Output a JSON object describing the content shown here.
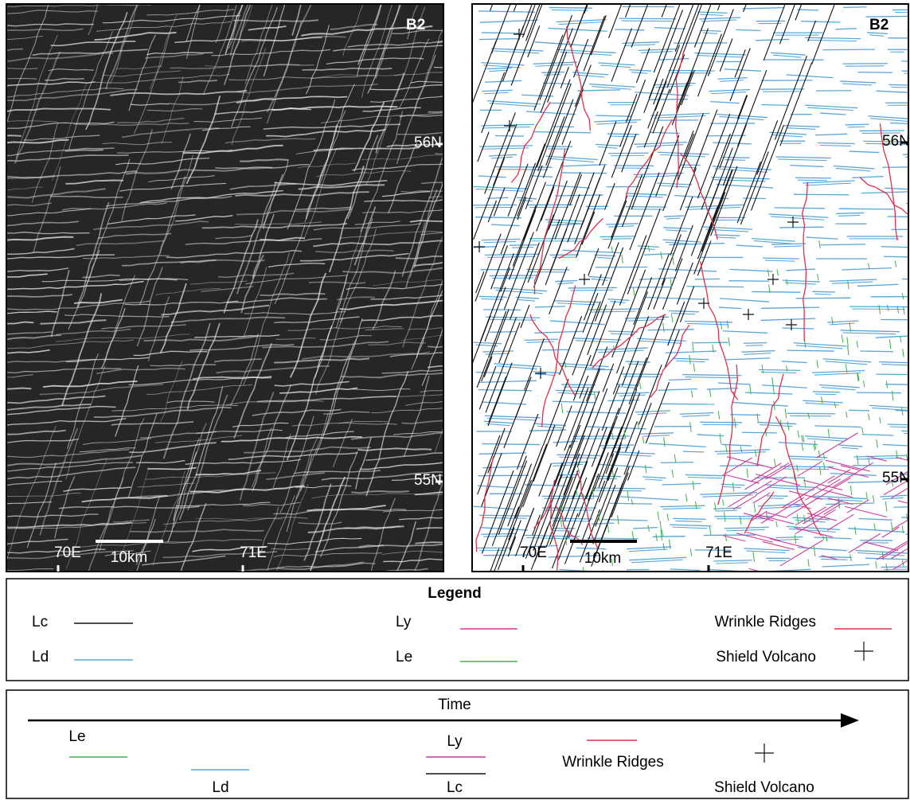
{
  "panels": [
    {
      "label": "B2",
      "lat_labels": [
        "56N",
        "55N"
      ],
      "lon_labels": [
        "70E",
        "71E"
      ],
      "scale_bar": "10km"
    },
    {
      "label": "B2",
      "lat_labels": [
        "56N",
        "55N"
      ],
      "lon_labels": [
        "70E",
        "71E"
      ],
      "scale_bar": "10km"
    }
  ],
  "legend": {
    "title": "Legend",
    "items": [
      {
        "label": "Lc",
        "color": "#111111"
      },
      {
        "label": "Ld",
        "color": "#5aa6d8"
      },
      {
        "label": "Ly",
        "color": "#cc3d9e"
      },
      {
        "label": "Le",
        "color": "#3cb34a"
      },
      {
        "label": "Wrinkle Ridges",
        "color": "#e0304a"
      },
      {
        "label": "Shield Volcano",
        "color": "#111111"
      }
    ]
  },
  "timeline": {
    "title": "Time",
    "items": [
      {
        "label": "Le"
      },
      {
        "label": "Ld"
      },
      {
        "label": "Ly"
      },
      {
        "label": "Lc"
      },
      {
        "label": "Wrinkle Ridges"
      },
      {
        "label": "Shield Volcano"
      }
    ]
  }
}
